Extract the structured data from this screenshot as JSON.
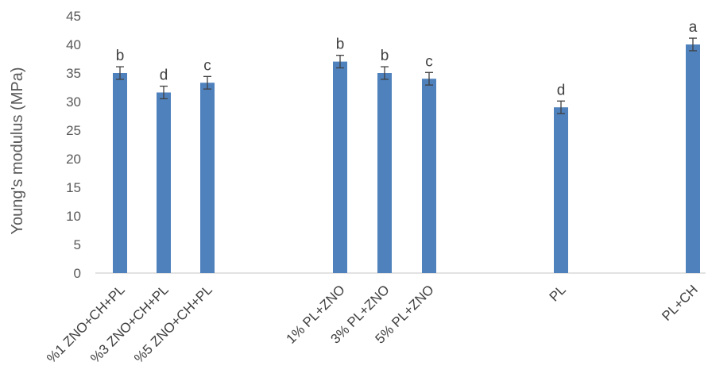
{
  "chart_data": {
    "type": "bar",
    "ylabel": "Young's modulus (MPa)",
    "ylim": [
      0,
      45
    ],
    "yticks": [
      0,
      5,
      10,
      15,
      20,
      25,
      30,
      35,
      40,
      45
    ],
    "grid": false,
    "bar_color": "#4f81bd",
    "categories": [
      "%1 ZNO+CH+PL",
      "%3 ZNO+CH+PL",
      "%5 ZNO+CH+PL",
      "1% PL+ZNO",
      "3% PL+ZNO",
      "5% PL+ZNO",
      "PL",
      "PL+CH"
    ],
    "values": [
      35,
      31.6,
      33.3,
      37,
      35,
      34,
      29,
      40
    ],
    "errors": [
      1.1,
      1.1,
      1.1,
      1.1,
      1.1,
      1.1,
      1.1,
      1.1
    ],
    "significance": [
      "b",
      "d",
      "c",
      "b",
      "b",
      "c",
      "d",
      "a"
    ]
  }
}
